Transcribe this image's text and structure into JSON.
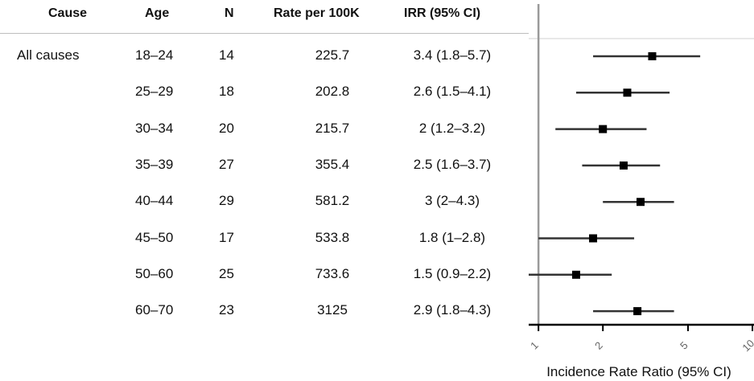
{
  "table": {
    "headers": [
      "Cause",
      "Age",
      "N",
      "Rate per 100K",
      "IRR (95% CI)"
    ],
    "rows": [
      {
        "cause": "All causes",
        "age": "18–24",
        "n": "14",
        "rate": "225.7",
        "irr": "3.4 (1.8–5.7)"
      },
      {
        "cause": "",
        "age": "25–29",
        "n": "18",
        "rate": "202.8",
        "irr": "2.6 (1.5–4.1)"
      },
      {
        "cause": "",
        "age": "30–34",
        "n": "20",
        "rate": "215.7",
        "irr": "2 (1.2–3.2)"
      },
      {
        "cause": "",
        "age": "35–39",
        "n": "27",
        "rate": "355.4",
        "irr": "2.5 (1.6–3.7)"
      },
      {
        "cause": "",
        "age": "40–44",
        "n": "29",
        "rate": "581.2",
        "irr": "3 (2–4.3)"
      },
      {
        "cause": "",
        "age": "45–50",
        "n": "17",
        "rate": "533.8",
        "irr": "1.8 (1–2.8)"
      },
      {
        "cause": "",
        "age": "50–60",
        "n": "25",
        "rate": "733.6",
        "irr": "1.5 (0.9–2.2)"
      },
      {
        "cause": "",
        "age": "60–70",
        "n": "23",
        "rate": "3125",
        "irr": "2.9 (1.8–4.3)"
      }
    ]
  },
  "chart_data": {
    "type": "forest",
    "title": "",
    "xlabel": "Incidence Rate Ratio (95% CI)",
    "x_scale": "log",
    "xlim": [
      0.9,
      10
    ],
    "xticks": [
      1,
      2,
      5,
      10
    ],
    "xtick_labels": [
      "1",
      "2",
      "5",
      "10"
    ],
    "reference_line": 1,
    "categories": [
      "18–24",
      "25–29",
      "30–34",
      "35–39",
      "40–44",
      "45–50",
      "50–60",
      "60–70"
    ],
    "estimates": [
      3.4,
      2.6,
      2.0,
      2.5,
      3.0,
      1.8,
      1.5,
      2.9
    ],
    "ci_low": [
      1.8,
      1.5,
      1.2,
      1.6,
      2.0,
      1.0,
      0.9,
      1.8
    ],
    "ci_high": [
      5.7,
      4.1,
      3.2,
      3.7,
      4.3,
      2.8,
      2.2,
      4.3
    ],
    "colors": {
      "point": "#000000",
      "ci": "#333333",
      "reference": "#9a9a9a",
      "axis": "#000000"
    }
  }
}
